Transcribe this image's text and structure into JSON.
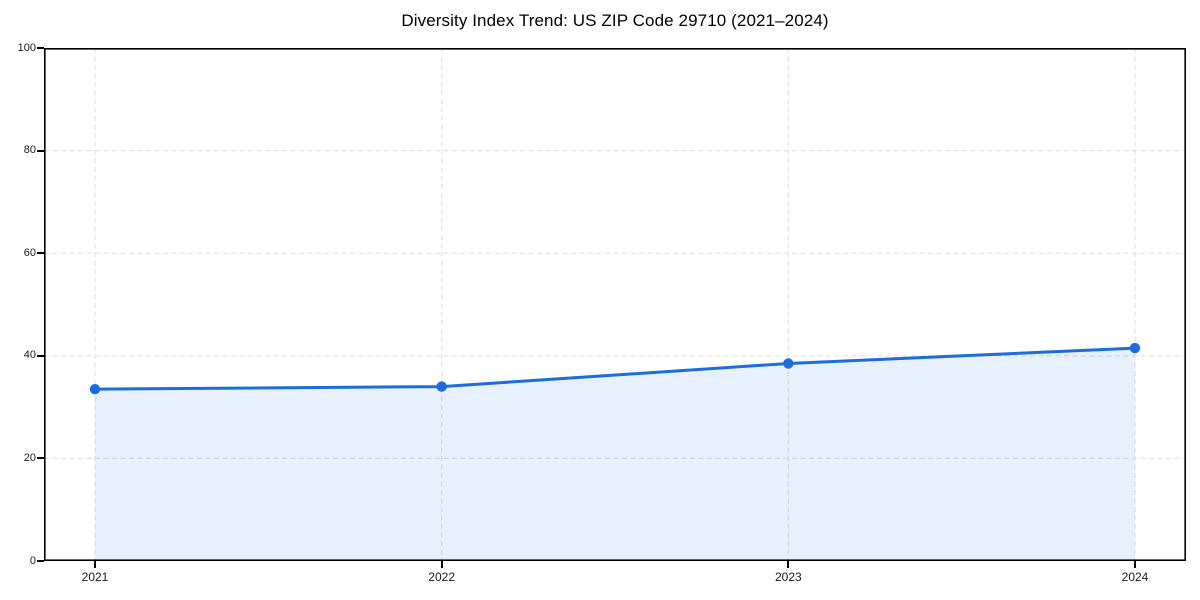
{
  "chart_data": {
    "type": "area",
    "title": "Diversity Index Trend: US ZIP Code 29710 (2021–2024)",
    "x": [
      2021,
      2022,
      2023,
      2024
    ],
    "x_labels": [
      "2021",
      "2022",
      "2023",
      "2024"
    ],
    "series": [
      {
        "name": "Diversity Index",
        "values": [
          33.5,
          34.0,
          38.5,
          41.5
        ]
      }
    ],
    "xlabel": "",
    "ylabel": "",
    "ylim": [
      0,
      100
    ],
    "yticks": [
      0,
      20,
      40,
      60,
      80,
      100
    ],
    "grid": true,
    "grid_style": "dashed",
    "legend_position": "none",
    "marker": "circle",
    "colors": {
      "line": "#1c6cdc",
      "marker": "#1c6cdc",
      "fill": "rgba(28,108,220,0.10)",
      "grid": "#e3e3e3",
      "spine": "#000000",
      "tick_text": "#1a1a1a",
      "title_text": "#000000",
      "background": "#ffffff"
    }
  }
}
